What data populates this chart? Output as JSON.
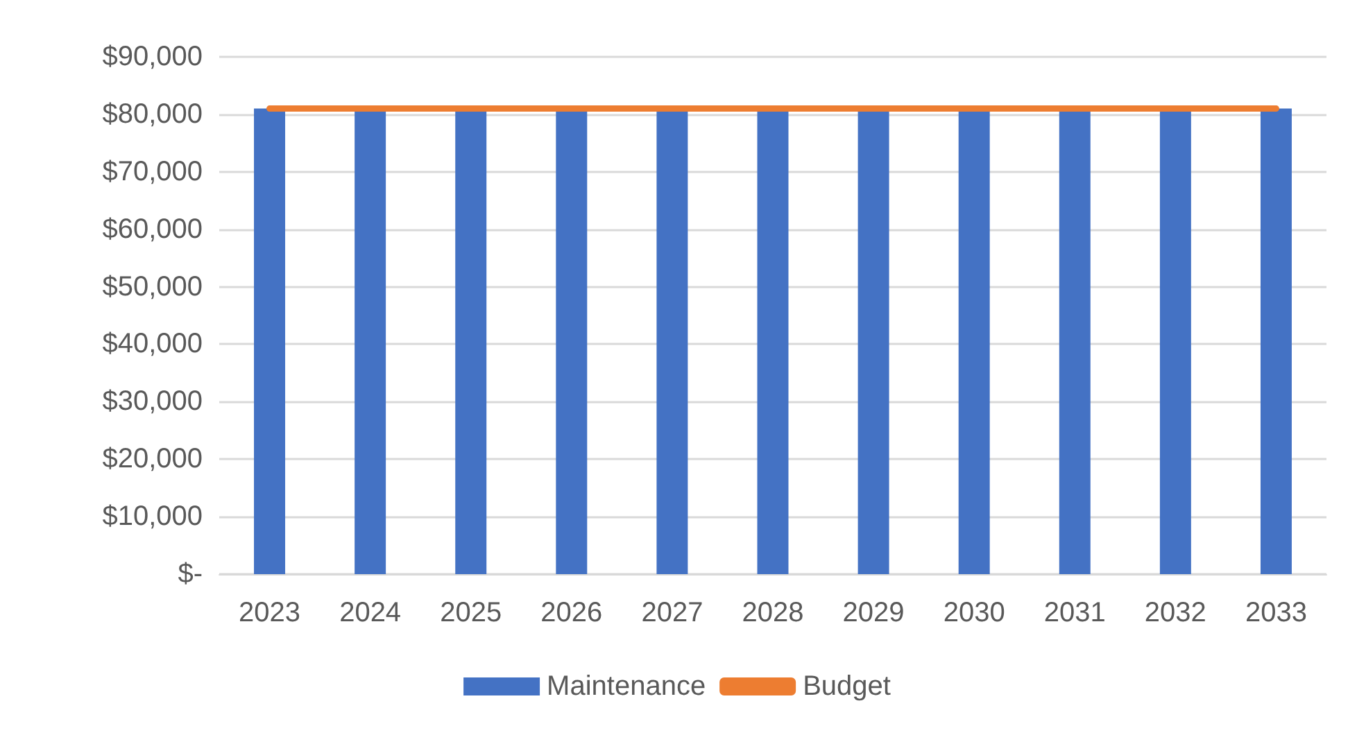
{
  "chart_data": {
    "type": "bar",
    "categories": [
      "2023",
      "2024",
      "2025",
      "2026",
      "2027",
      "2028",
      "2029",
      "2030",
      "2031",
      "2032",
      "2033"
    ],
    "series": [
      {
        "name": "Maintenance",
        "color": "#4472c4",
        "values": [
          81000,
          81000,
          81000,
          81000,
          81000,
          81000,
          81000,
          81000,
          81000,
          81000,
          81000
        ]
      },
      {
        "name": "Budget",
        "type": "line",
        "color": "#ed7d31",
        "values": [
          81000,
          81000,
          81000,
          81000,
          81000,
          81000,
          81000,
          81000,
          81000,
          81000,
          81000
        ]
      }
    ],
    "ylim": [
      0,
      90000
    ],
    "yticks": [
      {
        "value": 0,
        "label": "$-"
      },
      {
        "value": 10000,
        "label": "$10,000"
      },
      {
        "value": 20000,
        "label": "$20,000"
      },
      {
        "value": 30000,
        "label": "$30,000"
      },
      {
        "value": 40000,
        "label": "$40,000"
      },
      {
        "value": 50000,
        "label": "$50,000"
      },
      {
        "value": 60000,
        "label": "$60,000"
      },
      {
        "value": 70000,
        "label": "$70,000"
      },
      {
        "value": 80000,
        "label": "$80,000"
      },
      {
        "value": 90000,
        "label": "$90,000"
      }
    ],
    "grid": "y",
    "legend": "bottom",
    "marker": "none",
    "line_style": "solid"
  }
}
